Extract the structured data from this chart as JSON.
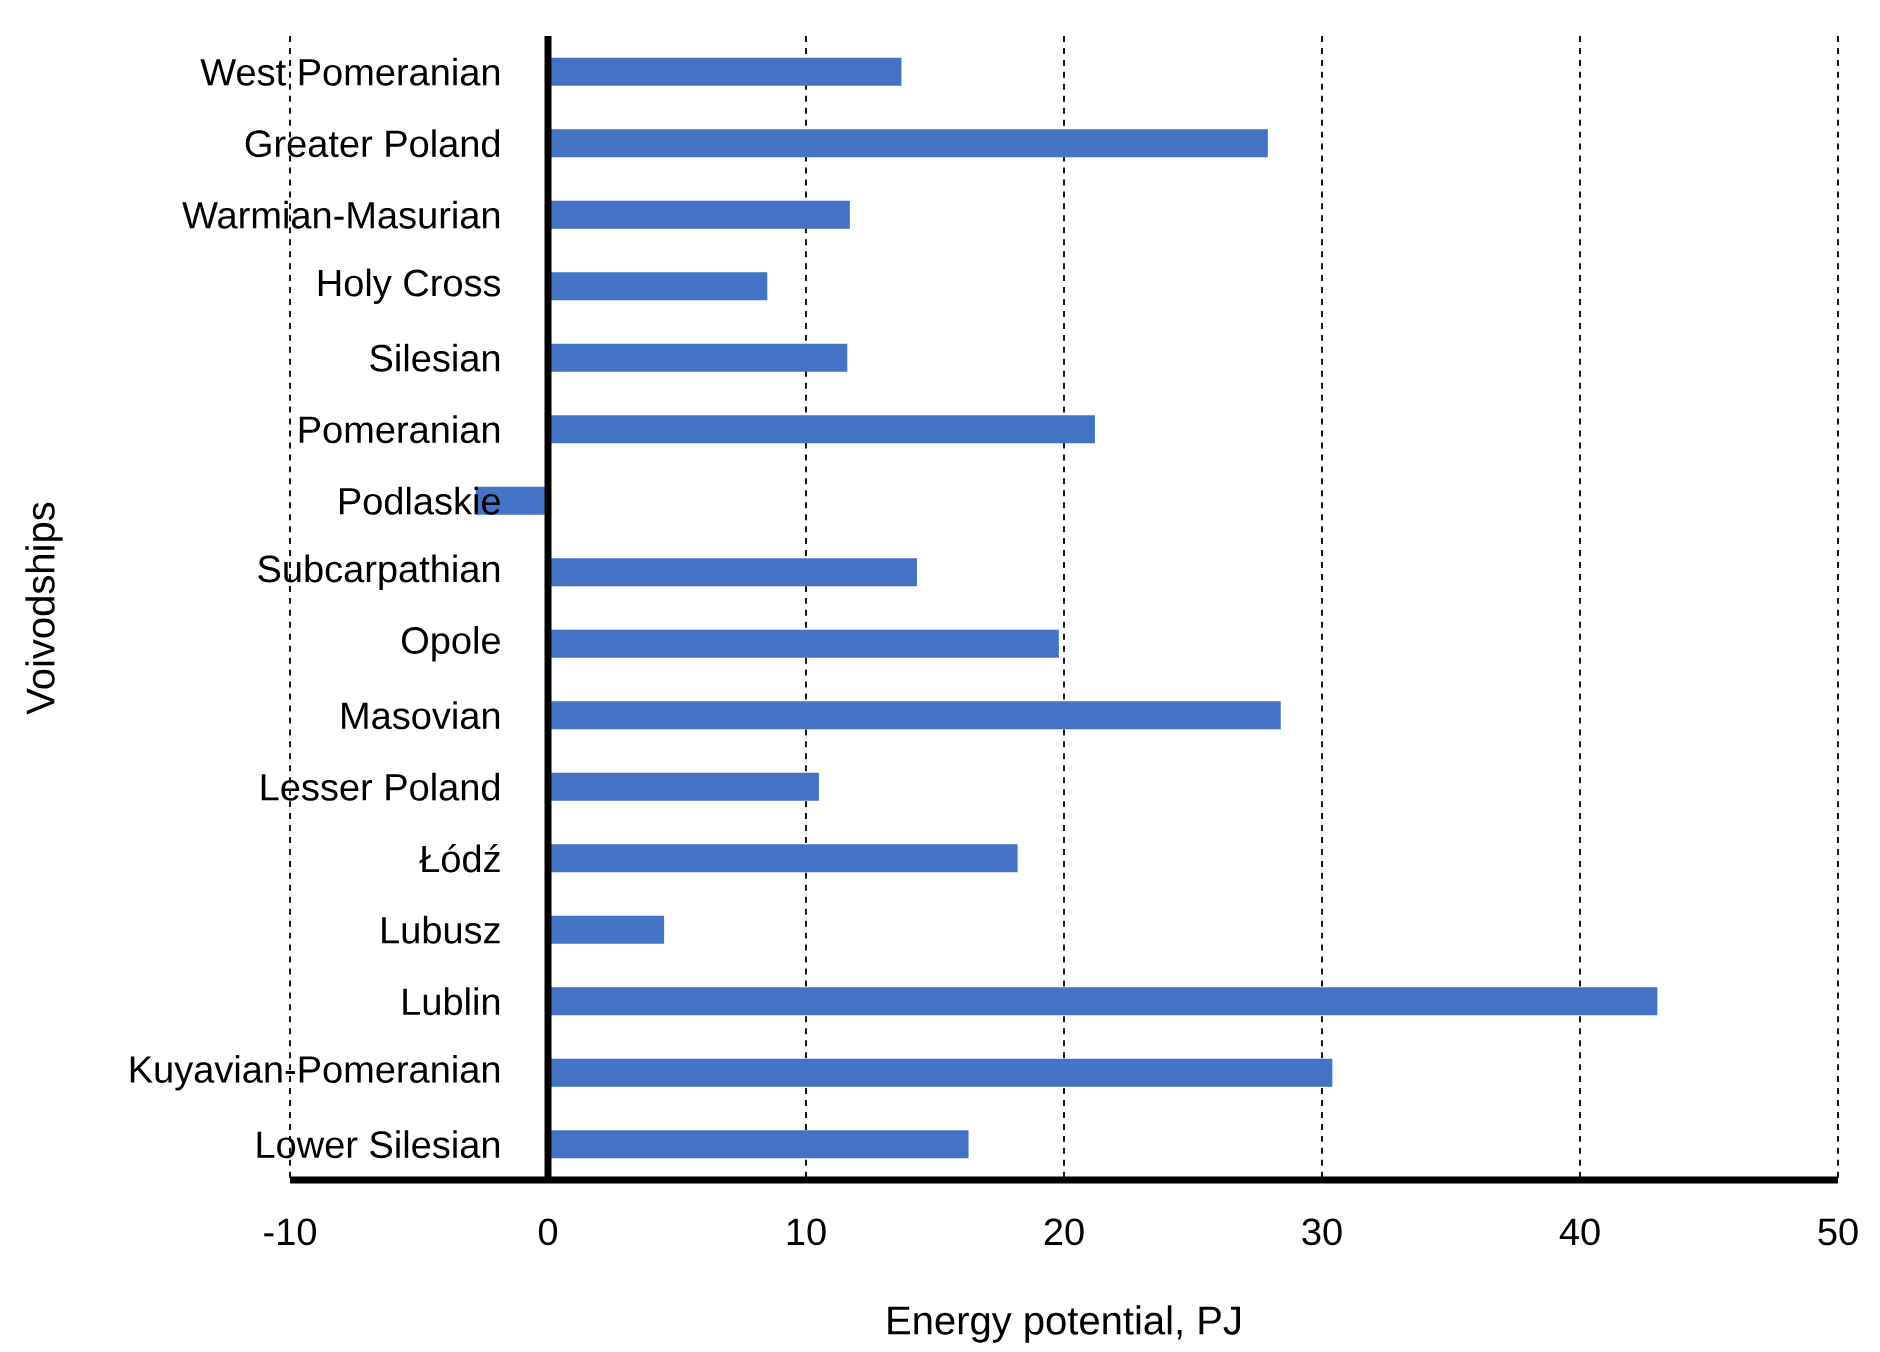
{
  "chart_data": {
    "type": "bar",
    "orientation": "horizontal",
    "xlabel": "Energy potential, PJ",
    "ylabel": "Voivodships",
    "categories": [
      "West Pomeranian",
      "Greater Poland",
      "Warmian-Masurian",
      "Holy Cross",
      "Silesian",
      "Pomeranian",
      "Podlaskie",
      "Subcarpathian",
      "Opole",
      "Masovian",
      "Lesser Poland",
      "Łódź",
      "Lubusz",
      "Lublin",
      "Kuyavian-Pomeranian",
      "Lower Silesian"
    ],
    "values": [
      13.7,
      27.9,
      11.7,
      8.5,
      11.6,
      21.2,
      -2.8,
      14.3,
      19.8,
      28.4,
      10.5,
      18.2,
      4.5,
      43.0,
      30.4,
      16.3
    ],
    "color": "#4472c4",
    "xlim": [
      -10,
      50
    ],
    "xticks": [
      -10,
      0,
      10,
      20,
      30,
      40,
      50
    ],
    "grid": "x"
  }
}
